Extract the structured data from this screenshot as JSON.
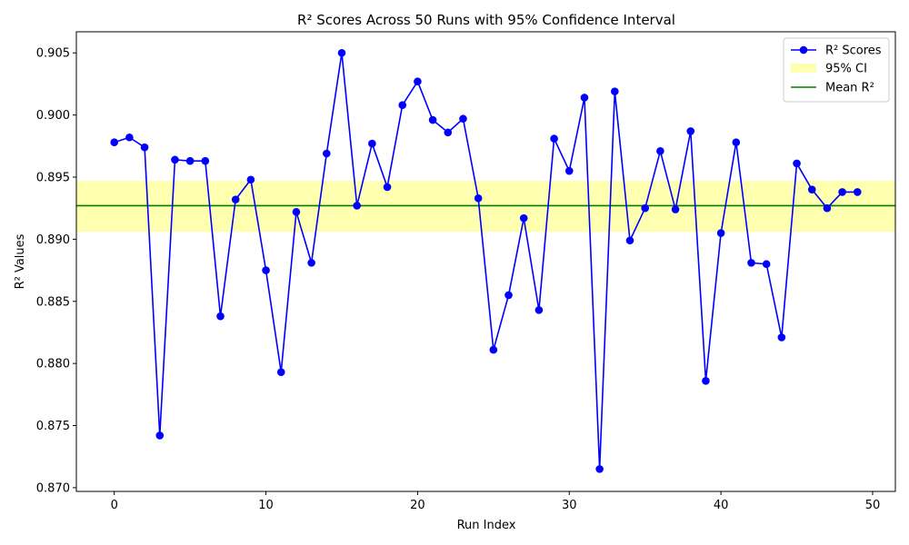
{
  "chart_data": {
    "type": "line",
    "title": "R² Scores Across 50 Runs with 95% Confidence Interval",
    "xlabel": "Run Index",
    "ylabel": "R² Values",
    "xlim": [
      -2.5,
      51.5
    ],
    "ylim": [
      0.8697,
      0.9067
    ],
    "x_ticks": [
      0,
      10,
      20,
      30,
      40,
      50
    ],
    "y_ticks": [
      0.87,
      0.875,
      0.88,
      0.885,
      0.89,
      0.895,
      0.9,
      0.905
    ],
    "x_tick_labels": [
      "0",
      "10",
      "20",
      "30",
      "40",
      "50"
    ],
    "y_tick_labels": [
      "0.870",
      "0.875",
      "0.880",
      "0.885",
      "0.890",
      "0.895",
      "0.900",
      "0.905"
    ],
    "grid": false,
    "legend_position": "top-right",
    "series": [
      {
        "name": "R² Scores",
        "color": "#0000ff",
        "marker": "circle",
        "x": [
          0,
          1,
          2,
          3,
          4,
          5,
          6,
          7,
          8,
          9,
          10,
          11,
          12,
          13,
          14,
          15,
          16,
          17,
          18,
          19,
          20,
          21,
          22,
          23,
          24,
          25,
          26,
          27,
          28,
          29,
          30,
          31,
          32,
          33,
          34,
          35,
          36,
          37,
          38,
          39,
          40,
          41,
          42,
          43,
          44,
          45,
          46,
          47,
          48,
          49
        ],
        "values": [
          0.8978,
          0.8982,
          0.8974,
          0.8742,
          0.8964,
          0.8963,
          0.8963,
          0.8838,
          0.8932,
          0.8948,
          0.8875,
          0.8793,
          0.8922,
          0.8881,
          0.8969,
          0.905,
          0.8927,
          0.8977,
          0.8942,
          0.9008,
          0.9027,
          0.8996,
          0.8986,
          0.8997,
          0.8933,
          0.8811,
          0.8855,
          0.8917,
          0.8843,
          0.8981,
          0.8955,
          0.9014,
          0.8715,
          0.9019,
          0.8899,
          0.8925,
          0.8971,
          0.8924,
          0.8987,
          0.8786,
          0.8905,
          0.8978,
          0.8881,
          0.888,
          0.8821,
          0.8961,
          0.894,
          0.8925,
          0.8938,
          0.8938
        ]
      }
    ],
    "confidence_interval": {
      "name": "95% CI",
      "lower": 0.8906,
      "upper": 0.8947,
      "color": "#ffffb0"
    },
    "mean_line": {
      "name": "Mean R²",
      "value": 0.8927,
      "color": "#008000"
    }
  }
}
